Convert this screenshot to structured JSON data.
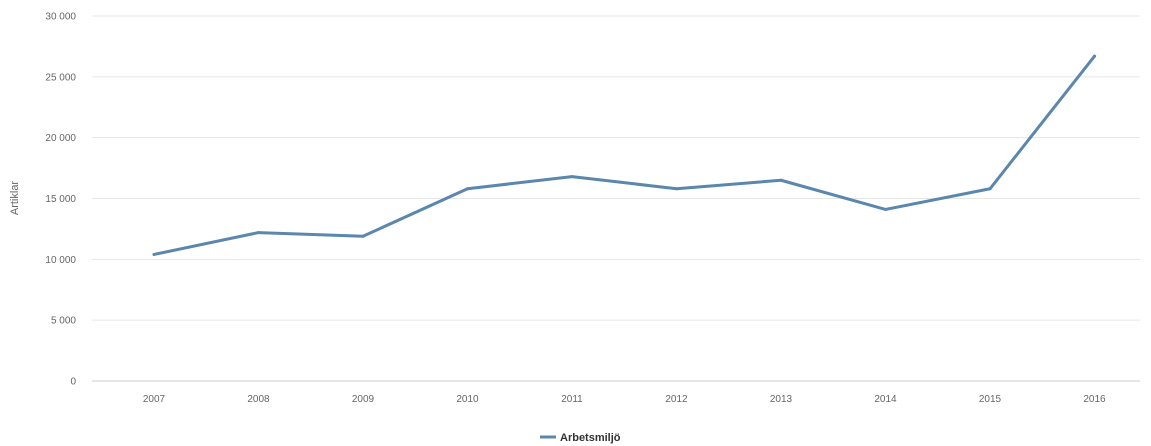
{
  "chart_data": {
    "type": "line",
    "ylabel": "Artiklar",
    "ylim": [
      0,
      30000
    ],
    "y_ticks": [
      0,
      5000,
      10000,
      15000,
      20000,
      25000,
      30000
    ],
    "y_tick_labels": [
      "0",
      "5 000",
      "10 000",
      "15 000",
      "20 000",
      "25 000",
      "30 000"
    ],
    "categories": [
      "2007",
      "2008",
      "2009",
      "2010",
      "2011",
      "2012",
      "2013",
      "2014",
      "2015",
      "2016"
    ],
    "series": [
      {
        "name": "Arbetsmiljö",
        "color": "#5b87ad",
        "values": [
          10400,
          12200,
          11900,
          15800,
          16800,
          15800,
          16500,
          14100,
          15800,
          26700
        ]
      }
    ],
    "grid": true,
    "legend": "bottom-center"
  }
}
